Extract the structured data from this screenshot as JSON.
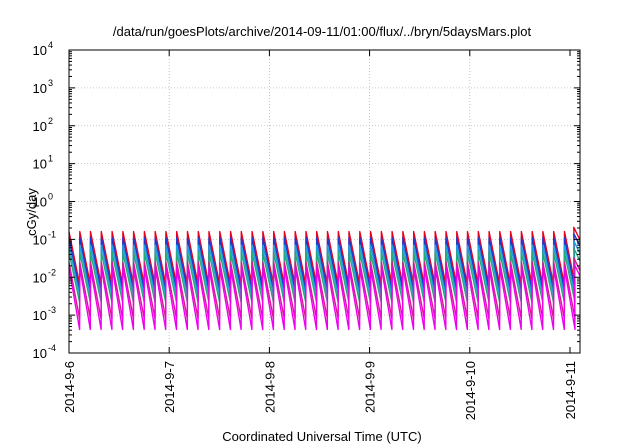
{
  "chart_data": {
    "type": "line",
    "title": "/data/run/goesPlots/archive/2014-09-11/01:00/flux/../bryn/5daysMars.plot",
    "xlabel": "Coordinated Universal Time (UTC)",
    "ylabel": "cGy/day",
    "yscale": "log",
    "ylim": [
      0.0001,
      10000
    ],
    "yticks": [
      {
        "base": "10",
        "exp": "-4"
      },
      {
        "base": "10",
        "exp": "-3"
      },
      {
        "base": "10",
        "exp": "-2"
      },
      {
        "base": "10",
        "exp": "-1"
      },
      {
        "base": "10",
        "exp": "0"
      },
      {
        "base": "10",
        "exp": "1"
      },
      {
        "base": "10",
        "exp": "2"
      },
      {
        "base": "10",
        "exp": "3"
      },
      {
        "base": "10",
        "exp": "4"
      }
    ],
    "xticks": [
      "2014-9-6",
      "2014-9-7",
      "2014-9-8",
      "2014-9-9",
      "2014-9-10",
      "2014-9-11"
    ],
    "xlim_days": [
      0,
      5.1
    ],
    "grid": true,
    "legend": "none",
    "sawtooth": {
      "period_days": 0.1075,
      "count": 47,
      "last_cycle_start_day": 5.038
    },
    "series": [
      {
        "color": "#e8001c",
        "peak": 0.16,
        "trough": 0.0065
      },
      {
        "color": "#1a3ad4",
        "peak": 0.11,
        "trough": 0.0045
      },
      {
        "color": "#1aa0dc",
        "peak": 0.07,
        "trough": 0.0033
      },
      {
        "color": "#24a878",
        "peak": 0.045,
        "trough": 0.0022
      },
      {
        "color": "#d81890",
        "peak": 0.025,
        "trough": 0.0008
      },
      {
        "color": "#ee00ee",
        "peak": 0.018,
        "trough": 0.00042
      }
    ]
  }
}
